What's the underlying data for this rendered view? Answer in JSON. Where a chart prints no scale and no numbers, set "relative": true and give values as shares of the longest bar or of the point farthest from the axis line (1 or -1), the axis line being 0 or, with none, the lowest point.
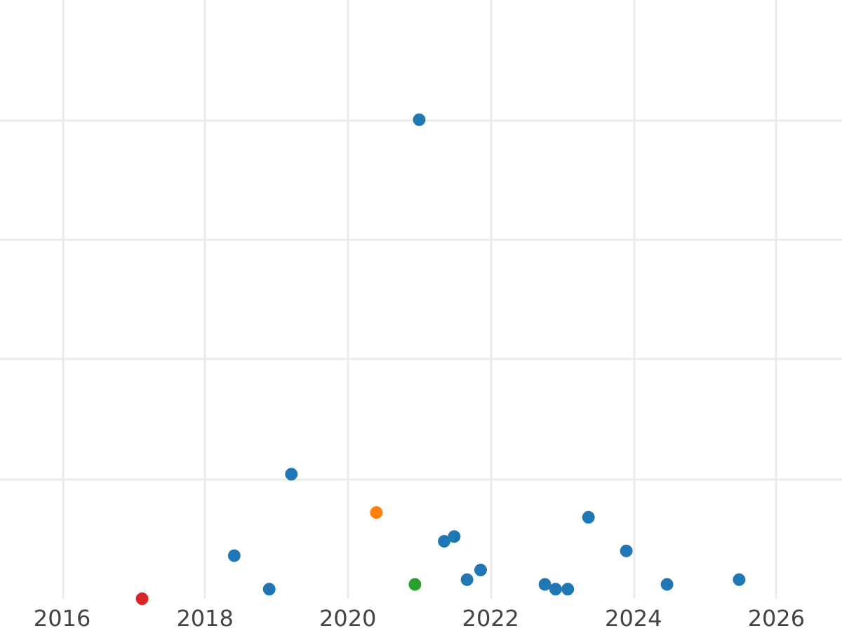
{
  "chart_data": {
    "type": "scatter",
    "relative": true,
    "marker": "circle",
    "grid": true,
    "tick_labels": "x",
    "xlim": [
      2015.13,
      2026.92
    ],
    "xticks": [
      2016,
      2018,
      2020,
      2022,
      2024,
      2026
    ],
    "series": [
      {
        "color": "#1f77b4",
        "x": [
          2018.41,
          2018.9,
          2019.21,
          2021.0,
          2021.35,
          2021.49,
          2021.67,
          2021.86,
          2022.76,
          2022.91,
          2023.08,
          2023.37,
          2023.9,
          2024.47,
          2025.48
        ],
        "values": [
          0.09,
          0.02,
          0.26,
          1,
          0.12,
          0.13,
          0.04,
          0.06,
          0.03,
          0.02,
          0.02,
          0.17,
          0.1,
          0.03,
          0.04
        ]
      },
      {
        "color": "#ff7f0e",
        "x": [
          2020.4
        ],
        "values": [
          0.18
        ]
      },
      {
        "color": "#2ca02c",
        "x": [
          2020.94
        ],
        "values": [
          0.03
        ]
      },
      {
        "color": "#d62728",
        "x": [
          2017.12
        ],
        "values": [
          0
        ]
      }
    ]
  }
}
